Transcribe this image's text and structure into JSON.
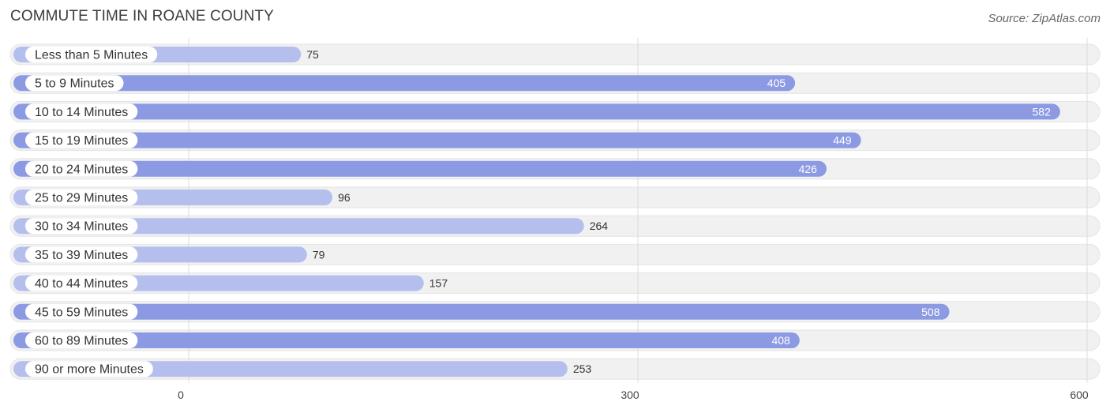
{
  "header": {
    "title": "COMMUTE TIME IN ROANE COUNTY",
    "source": "Source: ZipAtlas.com"
  },
  "colors": {
    "bar_strong": "#8c9ae3",
    "bar_light": "#b5bfee",
    "track": "#f1f1f1",
    "grid": "#dcdcdc"
  },
  "chart_data": {
    "type": "bar",
    "orientation": "horizontal",
    "title": "COMMUTE TIME IN ROANE COUNTY",
    "categories": [
      "Less than 5 Minutes",
      "5 to 9 Minutes",
      "10 to 14 Minutes",
      "15 to 19 Minutes",
      "20 to 24 Minutes",
      "25 to 29 Minutes",
      "30 to 34 Minutes",
      "35 to 39 Minutes",
      "40 to 44 Minutes",
      "45 to 59 Minutes",
      "60 to 89 Minutes",
      "90 or more Minutes"
    ],
    "values": [
      75,
      405,
      582,
      449,
      426,
      96,
      264,
      79,
      157,
      508,
      408,
      253
    ],
    "xlim": [
      0,
      600
    ],
    "xticks": [
      0,
      300,
      600
    ],
    "xlabel": "",
    "ylabel": "",
    "grid": true
  }
}
